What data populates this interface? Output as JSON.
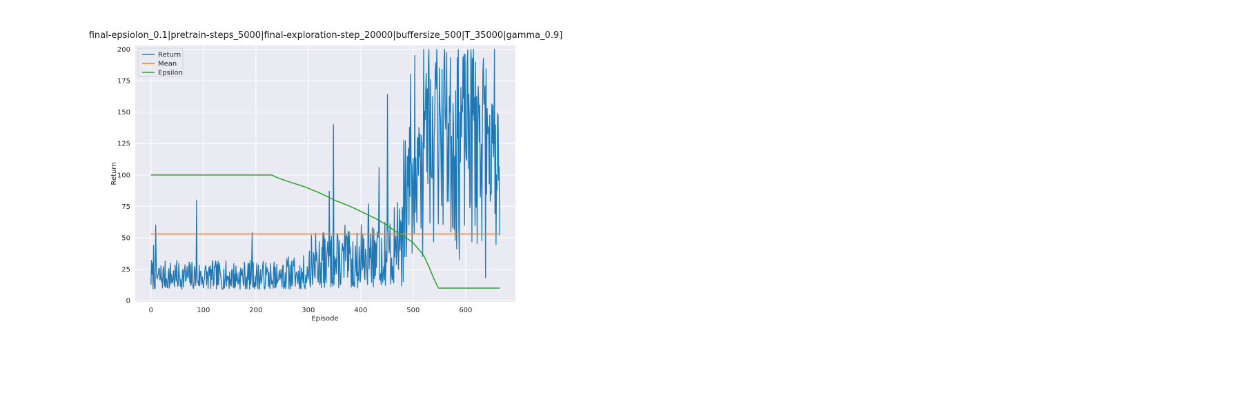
{
  "chart_data": {
    "type": "line",
    "title": "final-epsiolon_0.1|pretrain-steps_5000|final-exploration-step_20000|buffersize_500|T_35000|gamma_0.9]",
    "xlabel": "Episode",
    "ylabel": "Return",
    "xlim": [
      -30,
      695
    ],
    "ylim": [
      -1,
      203
    ],
    "xticks": [
      0,
      100,
      200,
      300,
      400,
      500,
      600
    ],
    "yticks": [
      0,
      25,
      50,
      75,
      100,
      125,
      150,
      175,
      200
    ],
    "grid": true,
    "legend_position": "top-left",
    "colors": {
      "plot_bg": "#eaeaf2",
      "grid": "#ffffff",
      "Return": "#1f77b4",
      "Mean": "#ff7f0e",
      "Epsilon": "#2ca02c"
    },
    "legend": [
      "Return",
      "Mean",
      "Epsilon"
    ],
    "series": [
      {
        "name": "Return",
        "segments": [
          {
            "x0": 0,
            "x1": 230,
            "min": 9,
            "max": 32,
            "seed": 7
          },
          {
            "x0": 230,
            "x1": 300,
            "min": 9,
            "max": 36,
            "seed": 11
          },
          {
            "x0": 300,
            "x1": 400,
            "min": 10,
            "max": 55,
            "seed": 13
          },
          {
            "x0": 400,
            "x1": 480,
            "min": 11,
            "max": 75,
            "seed": 17
          },
          {
            "x0": 480,
            "x1": 520,
            "min": 11,
            "max": 140,
            "seed": 19
          },
          {
            "x0": 520,
            "x1": 640,
            "min": 15,
            "max": 200,
            "seed": 23
          },
          {
            "x0": 640,
            "x1": 665,
            "min": 20,
            "max": 160,
            "seed": 29
          }
        ],
        "peaks": [
          [
            1,
            32
          ],
          [
            5,
            44
          ],
          [
            9,
            60
          ],
          [
            87,
            80
          ],
          [
            193,
            54
          ],
          [
            340,
            87
          ],
          [
            348,
            140
          ],
          [
            370,
            60
          ],
          [
            415,
            77
          ],
          [
            435,
            106
          ],
          [
            451,
            164
          ],
          [
            470,
            78
          ],
          [
            495,
            180
          ],
          [
            503,
            195
          ],
          [
            520,
            200
          ],
          [
            530,
            200
          ],
          [
            545,
            200
          ],
          [
            560,
            200
          ],
          [
            610,
            200
          ],
          [
            615,
            200
          ],
          [
            655,
            200
          ],
          [
            660,
            88
          ],
          [
            665,
            52
          ]
        ]
      },
      {
        "name": "Mean",
        "x": [
          0,
          665
        ],
        "y": [
          53,
          53
        ]
      },
      {
        "name": "Epsilon",
        "x": [
          0,
          230,
          240,
          260,
          290,
          320,
          350,
          380,
          410,
          430,
          450,
          470,
          490,
          500,
          510,
          520,
          530,
          540,
          548,
          665
        ],
        "y": [
          100,
          100,
          98,
          95,
          91,
          86,
          80,
          75,
          69,
          65,
          60,
          54,
          49,
          46,
          41,
          36,
          27,
          17,
          10,
          10
        ]
      }
    ]
  }
}
